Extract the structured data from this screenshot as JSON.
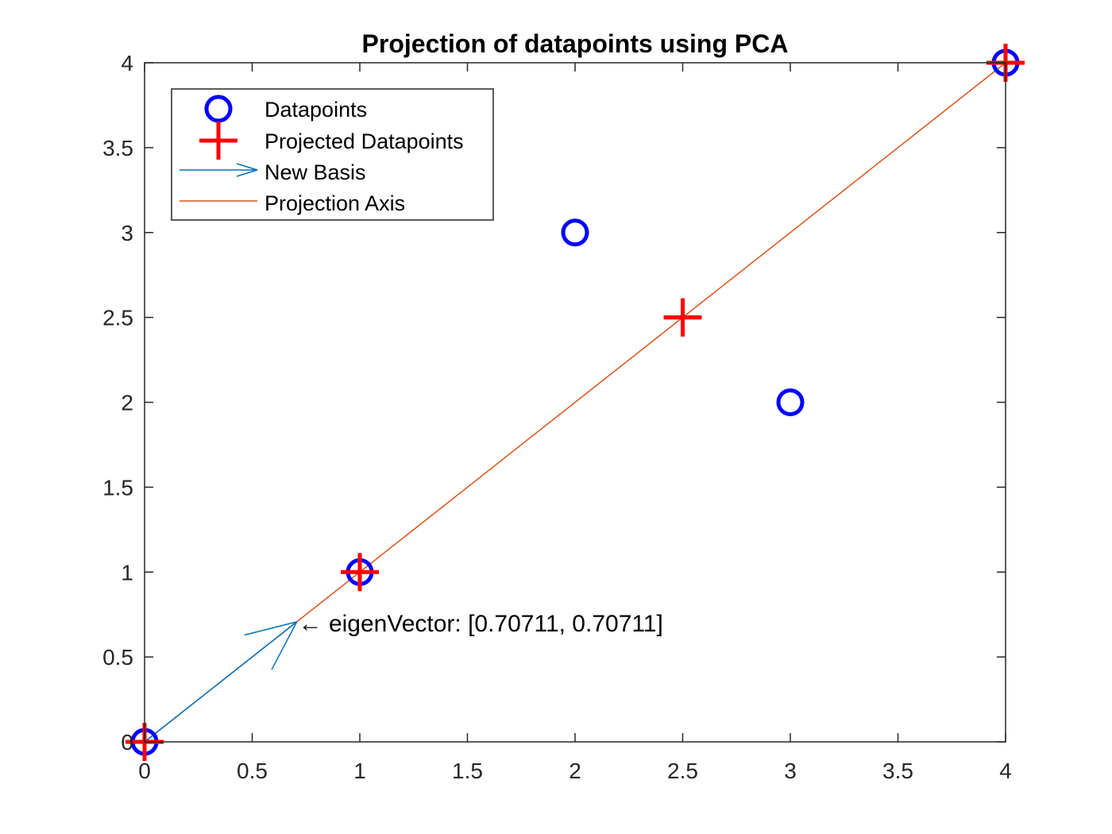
{
  "chart_data": {
    "type": "scatter",
    "title": "Projection of datapoints using PCA",
    "xlabel": "",
    "ylabel": "",
    "xlim": [
      0,
      4
    ],
    "ylim": [
      0,
      4
    ],
    "xticks": [
      0,
      0.5,
      1,
      1.5,
      2,
      2.5,
      3,
      3.5,
      4
    ],
    "yticks": [
      0,
      0.5,
      1,
      1.5,
      2,
      2.5,
      3,
      3.5,
      4
    ],
    "xtick_labels": [
      "0",
      "0.5",
      "1",
      "1.5",
      "2",
      "2.5",
      "3",
      "3.5",
      "4"
    ],
    "ytick_labels": [
      "0",
      "0.5",
      "1",
      "1.5",
      "2",
      "2.5",
      "3",
      "3.5",
      "4"
    ],
    "grid": false,
    "legend_position": "top-left",
    "series": [
      {
        "name": "Datapoints",
        "kind": "markers",
        "marker": "circle",
        "color": "#0000FF",
        "x": [
          0,
          1,
          2,
          3,
          4
        ],
        "y": [
          0,
          1,
          3,
          2,
          4
        ]
      },
      {
        "name": "Projected Datapoints",
        "kind": "markers",
        "marker": "plus",
        "color": "#FF0000",
        "x": [
          0,
          1,
          2.5,
          2.5,
          4
        ],
        "y": [
          0,
          1,
          2.5,
          2.5,
          4
        ]
      },
      {
        "name": "New Basis",
        "kind": "arrow",
        "color": "#0072BD",
        "from": [
          0,
          0
        ],
        "to": [
          0.70711,
          0.70711
        ]
      },
      {
        "name": "Projection Axis",
        "kind": "line",
        "color": "#D95319",
        "x": [
          0,
          4
        ],
        "y": [
          0,
          4
        ]
      }
    ],
    "annotations": [
      {
        "text": "← eigenVector: [0.70711, 0.70711]",
        "x": 0.70711,
        "y": 0.70711
      }
    ]
  }
}
